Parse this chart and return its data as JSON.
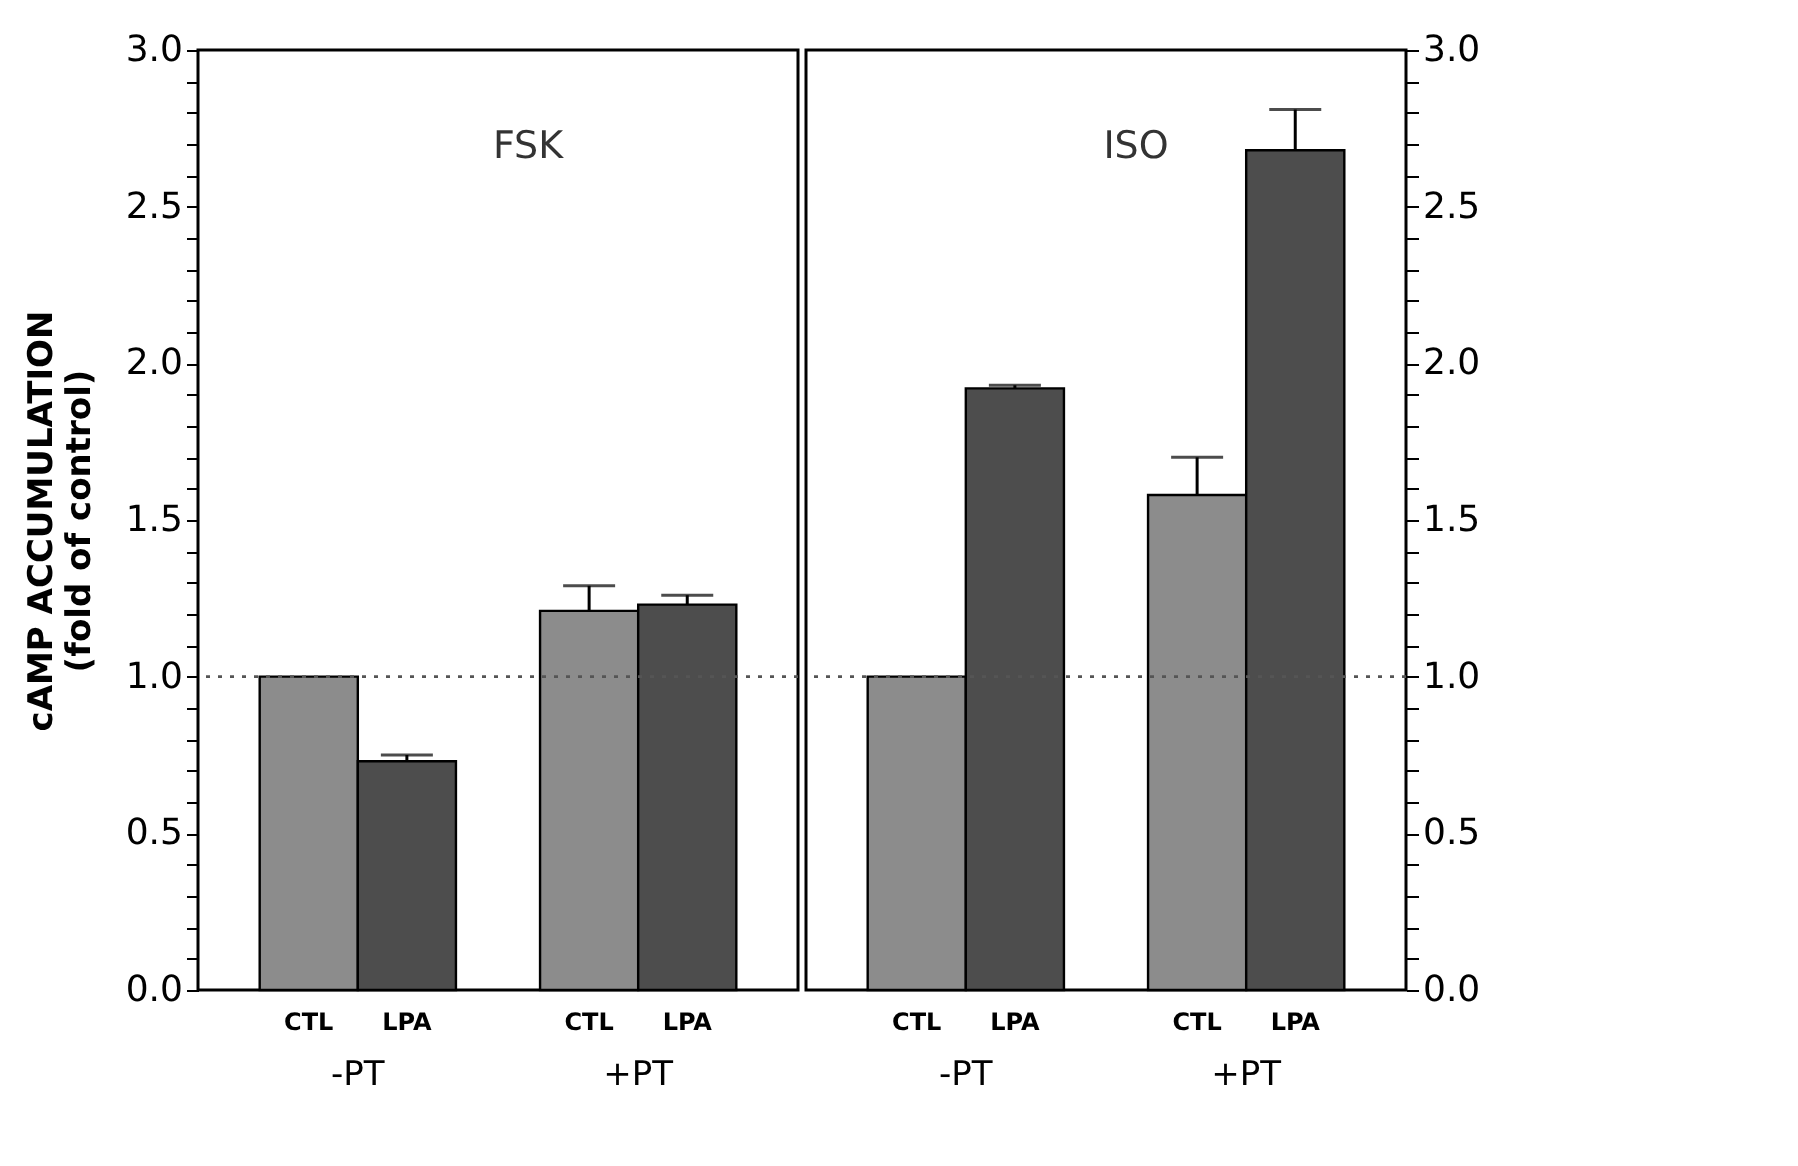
{
  "chart_data": [
    {
      "type": "bar",
      "title": "FSK",
      "ylabel": "cAMP ACCUMULATION\n(fold of control)",
      "categories": [
        "-PT",
        "+PT"
      ],
      "series": [
        {
          "name": "CTL",
          "color": "#8c8c8c",
          "values": [
            1.0,
            1.21
          ],
          "errors": [
            null,
            [
              1.21,
              1.29
            ]
          ]
        },
        {
          "name": "LPA",
          "color": "#4d4d4d",
          "values": [
            0.73,
            1.23
          ],
          "errors": [
            [
              0.73,
              0.75
            ],
            [
              1.23,
              1.26
            ]
          ]
        }
      ],
      "ylim": [
        0,
        3
      ],
      "yticks": [
        {
          "value": 0,
          "label": "0.0"
        },
        {
          "value": 0.1,
          "label": null
        },
        {
          "value": 0.2,
          "label": null
        },
        {
          "value": 0.3,
          "label": null
        },
        {
          "value": 0.4,
          "label": null
        },
        0.5,
        {
          "value": 0.6,
          "label": null
        },
        {
          "value": 0.7,
          "label": null
        },
        {
          "value": 0.8,
          "label": null
        },
        {
          "value": 0.9,
          "label": null
        },
        {
          "value": 1,
          "label": "1.0"
        },
        {
          "value": 1.1,
          "label": null
        },
        {
          "value": 1.2,
          "label": null
        },
        {
          "value": 1.3,
          "label": null
        },
        {
          "value": 1.4,
          "label": null
        },
        1.5,
        {
          "value": 1.6,
          "label": null
        },
        {
          "value": 1.7,
          "label": null
        },
        {
          "value": 1.8,
          "label": null
        },
        {
          "value": 1.9,
          "label": null
        },
        {
          "value": 2,
          "label": "2.0"
        },
        {
          "value": 2.1,
          "label": null
        },
        {
          "value": 2.2,
          "label": null
        },
        {
          "value": 2.3,
          "label": null
        },
        {
          "value": 2.4,
          "label": null
        },
        2.5,
        {
          "value": 2.6,
          "label": null
        },
        {
          "value": 2.7,
          "label": null
        },
        {
          "value": 2.8,
          "label": null
        },
        {
          "value": 2.9,
          "label": null
        },
        {
          "value": 3,
          "label": "3.0"
        }
      ],
      "ref_lines": [
        {
          "axis": "y",
          "value": 1.0,
          "label": null,
          "color": "#555555",
          "line_style": "dotted"
        }
      ],
      "legend": false
    },
    {
      "type": "bar",
      "title": "ISO",
      "categories": [
        "-PT",
        "+PT"
      ],
      "series": [
        {
          "name": "CTL",
          "color": "#8c8c8c",
          "axis": "y2",
          "values": [
            1.0,
            1.58
          ],
          "errors": [
            null,
            [
              1.58,
              1.7
            ]
          ]
        },
        {
          "name": "LPA",
          "color": "#4d4d4d",
          "axis": "y2",
          "values": [
            1.92,
            2.68
          ],
          "errors": [
            [
              1.92,
              1.93
            ],
            [
              2.68,
              2.81
            ]
          ]
        }
      ],
      "y2lim": [
        0,
        3
      ],
      "y2ticks": [
        {
          "value": 0,
          "label": "0.0"
        },
        {
          "value": 0.1,
          "label": null
        },
        {
          "value": 0.2,
          "label": null
        },
        {
          "value": 0.3,
          "label": null
        },
        {
          "value": 0.4,
          "label": null
        },
        0.5,
        {
          "value": 0.6,
          "label": null
        },
        {
          "value": 0.7,
          "label": null
        },
        {
          "value": 0.8,
          "label": null
        },
        {
          "value": 0.9,
          "label": null
        },
        {
          "value": 1,
          "label": "1.0"
        },
        {
          "value": 1.1,
          "label": null
        },
        {
          "value": 1.2,
          "label": null
        },
        {
          "value": 1.3,
          "label": null
        },
        {
          "value": 1.4,
          "label": null
        },
        1.5,
        {
          "value": 1.6,
          "label": null
        },
        {
          "value": 1.7,
          "label": null
        },
        {
          "value": 1.8,
          "label": null
        },
        {
          "value": 1.9,
          "label": null
        },
        {
          "value": 2,
          "label": "2.0"
        },
        {
          "value": 2.1,
          "label": null
        },
        {
          "value": 2.2,
          "label": null
        },
        {
          "value": 2.3,
          "label": null
        },
        {
          "value": 2.4,
          "label": null
        },
        2.5,
        {
          "value": 2.6,
          "label": null
        },
        {
          "value": 2.7,
          "label": null
        },
        {
          "value": 2.8,
          "label": null
        },
        {
          "value": 2.9,
          "label": null
        },
        {
          "value": 3,
          "label": "3.0"
        }
      ],
      "ref_lines": [
        {
          "axis": "y2",
          "value": 1.0,
          "label": null,
          "color": "#555555",
          "line_style": "dotted"
        }
      ],
      "legend": false
    }
  ]
}
